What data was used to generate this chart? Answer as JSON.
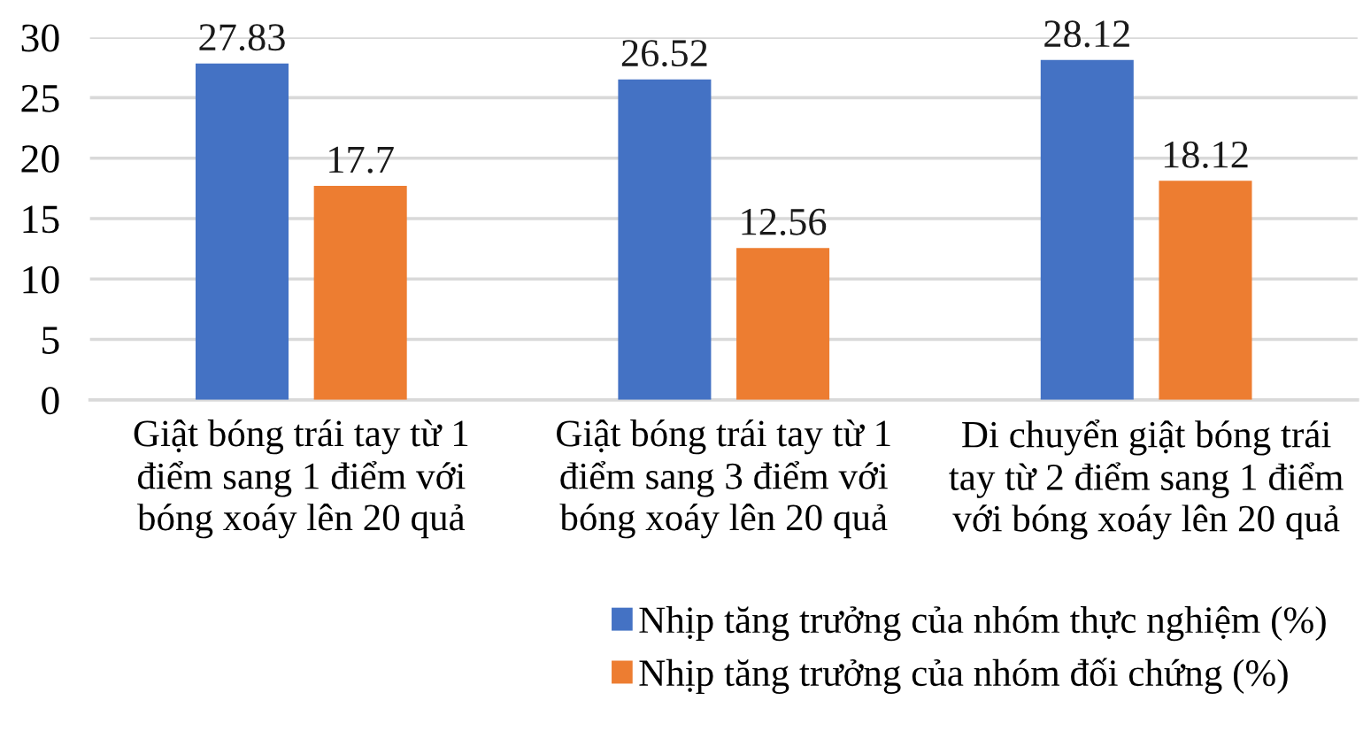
{
  "chart_data": {
    "type": "bar",
    "categories": [
      "Giật bóng trái tay từ 1\nđiểm sang 1 điểm với\nbóng xoáy lên 20 quả",
      "Giật bóng trái tay từ 1\nđiểm sang 3 điểm với\nbóng xoáy lên 20 quả",
      "Di chuyển giật bóng trái\ntay từ 2 điểm sang 1 điểm\nvới bóng xoáy lên 20 quả"
    ],
    "series": [
      {
        "name": "Nhịp tăng trưởng của nhóm thực nghiệm (%)",
        "color": "#4472c4",
        "values": [
          27.83,
          26.52,
          28.12
        ]
      },
      {
        "name": "Nhịp tăng trưởng của nhóm đối chứng (%)",
        "color": "#ed7d31",
        "values": [
          17.7,
          12.56,
          18.12
        ]
      }
    ],
    "ylim": [
      0,
      30
    ],
    "yticks": [
      0,
      5,
      10,
      15,
      20,
      25,
      30
    ],
    "grid": "y",
    "legend": "bottom right",
    "data_labels": true
  }
}
